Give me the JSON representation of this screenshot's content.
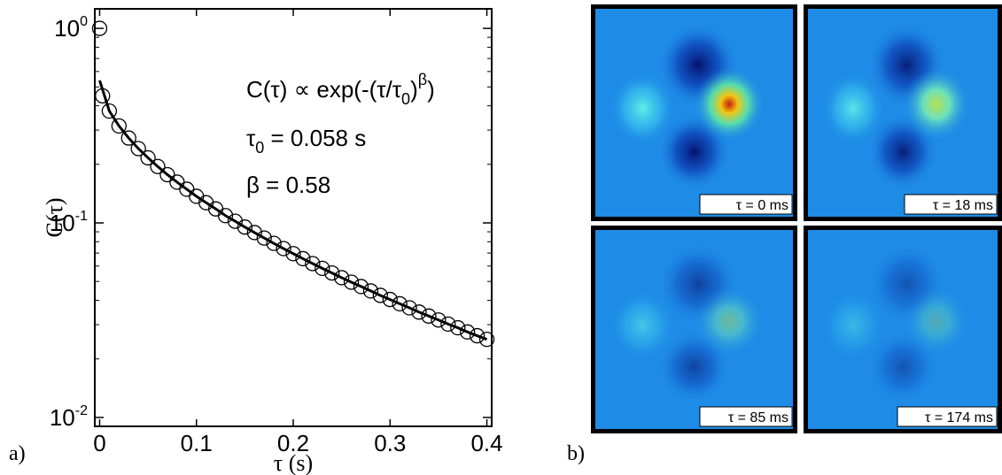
{
  "chart_data": {
    "type": "scatter",
    "x_label": "τ (s)",
    "y_label": "C(τ)",
    "annotations": [
      [
        {
          "text": "C(τ) ∝ exp(-(τ/τ"
        },
        {
          "sub": "0"
        },
        {
          "text": ")"
        },
        {
          "sup": "β"
        },
        {
          "text": ")"
        }
      ],
      [
        {
          "text": "τ"
        },
        {
          "sub": "0"
        },
        {
          "text": " = 0.058 s"
        }
      ],
      [
        {
          "text": "β = 0.58"
        }
      ]
    ],
    "xlim": [
      -0.005,
      0.405
    ],
    "xticks": [
      0,
      0.1,
      0.2,
      0.3,
      0.4
    ],
    "ylim": [
      0.009,
      1.26
    ],
    "log_y": true,
    "yticks": [
      {
        "value": 1,
        "label": "10",
        "sup": "0"
      },
      {
        "value": 0.1,
        "label": "10",
        "sup": "-1"
      },
      {
        "value": 0.01,
        "label": "10",
        "sup": "-2"
      }
    ],
    "series": [
      {
        "style": "markers",
        "color": "#000000",
        "x": [
          0,
          0.003,
          0.01,
          0.02,
          0.03,
          0.04,
          0.05,
          0.06,
          0.07,
          0.08,
          0.09,
          0.1,
          0.11,
          0.12,
          0.13,
          0.14,
          0.15,
          0.16,
          0.17,
          0.18,
          0.19,
          0.2,
          0.21,
          0.22,
          0.23,
          0.24,
          0.25,
          0.26,
          0.27,
          0.28,
          0.29,
          0.3,
          0.31,
          0.32,
          0.33,
          0.34,
          0.35,
          0.36,
          0.37,
          0.38,
          0.39,
          0.4
        ],
        "values": [
          1.0,
          0.45,
          0.376,
          0.315,
          0.273,
          0.241,
          0.216,
          0.195,
          0.177,
          0.162,
          0.149,
          0.137,
          0.127,
          0.118,
          0.109,
          0.102,
          0.0952,
          0.0892,
          0.0836,
          0.0785,
          0.0738,
          0.0695,
          0.0655,
          0.0618,
          0.0584,
          0.0553,
          0.0523,
          0.0496,
          0.0471,
          0.0447,
          0.0424,
          0.0404,
          0.0384,
          0.0366,
          0.0348,
          0.0332,
          0.0317,
          0.0302,
          0.0289,
          0.0275,
          0.0263,
          0.0252
        ]
      },
      {
        "style": "line",
        "color": "#000000",
        "x": [
          0,
          0.01,
          0.02,
          0.03,
          0.04,
          0.05,
          0.06,
          0.07,
          0.08,
          0.09,
          0.1,
          0.11,
          0.12,
          0.13,
          0.14,
          0.15,
          0.16,
          0.17,
          0.18,
          0.19,
          0.2,
          0.21,
          0.22,
          0.23,
          0.24,
          0.25,
          0.26,
          0.27,
          0.28,
          0.29,
          0.3,
          0.31,
          0.32,
          0.33,
          0.34,
          0.35,
          0.36,
          0.37,
          0.38,
          0.39,
          0.4
        ],
        "values": [
          0.54,
          0.376,
          0.315,
          0.273,
          0.241,
          0.216,
          0.195,
          0.177,
          0.162,
          0.149,
          0.137,
          0.127,
          0.118,
          0.109,
          0.102,
          0.0952,
          0.0892,
          0.0836,
          0.0785,
          0.0738,
          0.0695,
          0.0655,
          0.0618,
          0.0584,
          0.0553,
          0.0523,
          0.0496,
          0.0471,
          0.0447,
          0.0424,
          0.0404,
          0.0384,
          0.0366,
          0.0348,
          0.0332,
          0.0317,
          0.0302,
          0.0289,
          0.0275,
          0.0263,
          0.0252
        ]
      }
    ]
  },
  "panel_labels": [
    "a)",
    "b)"
  ],
  "image_labels": [
    "τ = 0 ms",
    "τ = 18 ms",
    "τ = 85 ms",
    "τ = 174 ms"
  ]
}
